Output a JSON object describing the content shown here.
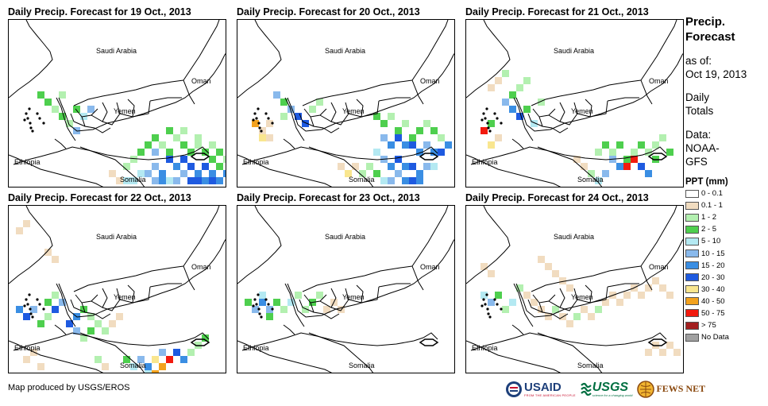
{
  "panels": [
    {
      "title": "Daily Precip. Forecast for 19 Oct., 2013"
    },
    {
      "title": "Daily Precip. Forecast for 20 Oct., 2013"
    },
    {
      "title": "Daily Precip. Forecast for 21 Oct., 2013"
    },
    {
      "title": "Daily Precip. Forecast for 22 Oct., 2013"
    },
    {
      "title": "Daily Precip. Forecast for 23 Oct., 2013"
    },
    {
      "title": "Daily Precip. Forecast for 24 Oct., 2013"
    }
  ],
  "map_labels": {
    "saudi": "Saudi Arabia",
    "oman": "Oman",
    "yemen": "Yemen",
    "ethiopia": "Ethiopia",
    "somalia": "Somalia"
  },
  "sidebar": {
    "title_line1": "Precip.",
    "title_line2": "Forecast",
    "asof_line1": "as of:",
    "asof_line2": "Oct 19, 2013",
    "daily_line1": "Daily",
    "daily_line2": "Totals",
    "data_line1": "Data:",
    "data_line2": "NOAA-",
    "data_line3": "GFS"
  },
  "legend": {
    "title": "PPT (mm)",
    "items": [
      {
        "label": "0 - 0.1",
        "color": "#ffffff"
      },
      {
        "label": "0.1 - 1",
        "color": "#f1dcc0"
      },
      {
        "label": "1 - 2",
        "color": "#b3f0b0"
      },
      {
        "label": "2 - 5",
        "color": "#4ecf4e"
      },
      {
        "label": "5 - 10",
        "color": "#b4e9f2"
      },
      {
        "label": "10 - 15",
        "color": "#89b9ec"
      },
      {
        "label": "15 - 20",
        "color": "#3a8ee3"
      },
      {
        "label": "20 - 30",
        "color": "#1e5ae0"
      },
      {
        "label": "30 - 40",
        "color": "#f9e68f"
      },
      {
        "label": "40 - 50",
        "color": "#f3a21e"
      },
      {
        "label": "50 - 75",
        "color": "#f21a0e"
      },
      {
        "label": "> 75",
        "color": "#a32020"
      },
      {
        "label": "No Data",
        "color": "#a0a0a0"
      }
    ]
  },
  "credit": "Map produced by USGS/EROS",
  "logos": {
    "usaid": "USAID",
    "usaid_tagline": "FROM THE AMERICAN PEOPLE",
    "usgs": "USGS",
    "usgs_tagline": "science for a changing world",
    "fews": "FEWS NET"
  }
}
